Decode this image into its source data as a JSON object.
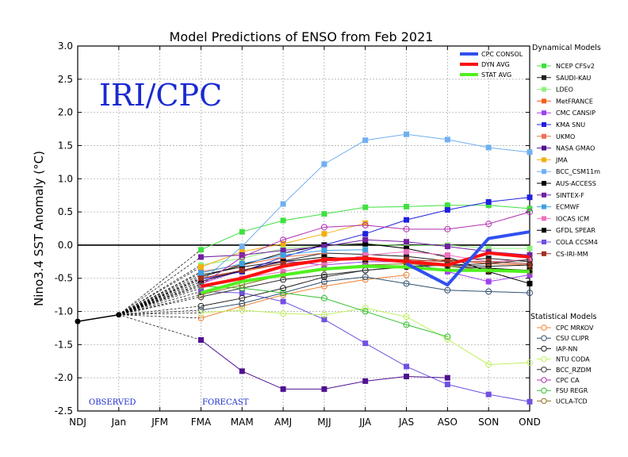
{
  "chart_data": {
    "type": "line",
    "title": "Model Predictions of ENSO from Feb 2021",
    "watermark": "IRI/CPC",
    "xlabel": "",
    "ylabel": "Nino3.4 SST Anomaly (°C)",
    "ylim": [
      -2.5,
      3.0
    ],
    "yticks": [
      "3.0",
      "2.5",
      "2.0",
      "1.5",
      "1.0",
      "0.5",
      "0.0",
      "-0.5",
      "-1.0",
      "-1.5",
      "-2.0",
      "-2.5"
    ],
    "categories": [
      "NDJ",
      "Jan",
      "JFM",
      "FMA",
      "MAM",
      "AMJ",
      "MJJ",
      "JJA",
      "JAS",
      "ASO",
      "SON",
      "OND"
    ],
    "observed_label": "OBSERVED",
    "forecast_label": "FORECAST",
    "grid": true,
    "observed": [
      -1.15,
      -1.05
    ],
    "consensus_legend": [
      {
        "name": "CPC CONSOL",
        "color": "#3050f0"
      },
      {
        "name": "DYN AVG",
        "color": "#ff1010"
      },
      {
        "name": "STAT AVG",
        "color": "#50f020"
      }
    ],
    "dynamical_title": "Dynamical Models",
    "statistical_title": "Statistical Models",
    "series": [
      {
        "name": "CPC CONSOL",
        "group": "consensus",
        "color": "#3050f0",
        "values": [
          null,
          null,
          null,
          null,
          null,
          null,
          null,
          null,
          -0.28,
          -0.6,
          0.1,
          0.2
        ]
      },
      {
        "name": "DYN AVG",
        "group": "consensus",
        "color": "#ff1010",
        "values": [
          null,
          null,
          null,
          -0.62,
          -0.5,
          -0.32,
          -0.22,
          -0.2,
          -0.25,
          -0.3,
          -0.12,
          -0.18
        ]
      },
      {
        "name": "STAT AVG",
        "group": "consensus",
        "color": "#50f020",
        "values": [
          null,
          null,
          null,
          -0.72,
          -0.55,
          -0.45,
          -0.36,
          -0.32,
          -0.33,
          -0.38,
          -0.38,
          -0.4
        ]
      },
      {
        "name": "NCEP CFSv2",
        "group": "dynamical",
        "marker": "square",
        "color": "#40e040",
        "values": [
          null,
          null,
          null,
          -0.07,
          0.2,
          0.37,
          0.47,
          0.57,
          0.58,
          0.6,
          0.6,
          0.55
        ]
      },
      {
        "name": "SAUDI-KAU",
        "group": "dynamical",
        "marker": "square",
        "color": "#202020",
        "values": [
          null,
          null,
          null,
          -0.45,
          -0.33,
          -0.24,
          -0.12,
          -0.14,
          -0.17,
          -0.24,
          -0.2,
          -0.25
        ]
      },
      {
        "name": "LDEO",
        "group": "dynamical",
        "marker": "square",
        "color": "#90f080",
        "values": [
          null,
          null,
          null,
          -0.3,
          -0.2,
          -0.05,
          -0.01,
          0.02,
          -0.01,
          0.0,
          -0.05,
          -0.05
        ]
      },
      {
        "name": "MetFRANCE",
        "group": "dynamical",
        "marker": "square",
        "color": "#f06020",
        "values": [
          null,
          null,
          null,
          -0.5,
          -0.4,
          -0.28,
          -0.22,
          -0.18,
          -0.25,
          -0.22,
          -0.28,
          -0.3
        ]
      },
      {
        "name": "CMC CANSIP",
        "group": "dynamical",
        "marker": "square",
        "color": "#a040f0",
        "values": [
          null,
          null,
          null,
          -0.58,
          -0.38,
          -0.24,
          -0.3,
          -0.25,
          -0.25,
          -0.4,
          -0.55,
          -0.45
        ]
      },
      {
        "name": "KMA SNU",
        "group": "dynamical",
        "marker": "square",
        "color": "#2020e0",
        "values": [
          null,
          null,
          null,
          -0.52,
          -0.4,
          -0.18,
          0.0,
          0.17,
          0.38,
          0.53,
          0.65,
          0.72
        ]
      },
      {
        "name": "UKMO",
        "group": "dynamical",
        "marker": "square",
        "color": "#f07050",
        "values": [
          null,
          null,
          null,
          -0.4,
          -0.3,
          -0.18,
          -0.12,
          null,
          null,
          null,
          null,
          null
        ]
      },
      {
        "name": "NASA GMAO",
        "group": "dynamical",
        "marker": "square",
        "color": "#501090",
        "values": [
          null,
          null,
          null,
          -1.43,
          -1.9,
          -2.17,
          -2.17,
          -2.05,
          -1.98,
          -2.0,
          null,
          null
        ]
      },
      {
        "name": "JMA",
        "group": "dynamical",
        "marker": "square",
        "color": "#f0b010",
        "values": [
          null,
          null,
          null,
          -0.33,
          -0.1,
          0.02,
          0.17,
          0.33,
          null,
          null,
          null,
          null
        ]
      },
      {
        "name": "BCC_CSM11m",
        "group": "dynamical",
        "marker": "square",
        "color": "#70b0f0",
        "values": [
          null,
          null,
          null,
          -0.55,
          -0.02,
          0.62,
          1.22,
          1.58,
          1.67,
          1.59,
          1.47,
          1.4
        ]
      },
      {
        "name": "AUS-ACCESS",
        "group": "dynamical",
        "marker": "square",
        "color": "#000000",
        "values": [
          null,
          null,
          null,
          -0.48,
          -0.3,
          -0.12,
          0.0,
          0.02,
          -0.05,
          -0.18,
          -0.4,
          -0.58
        ]
      },
      {
        "name": "SINTEX-F",
        "group": "dynamical",
        "marker": "square",
        "color": "#7020a0",
        "values": [
          null,
          null,
          null,
          -0.18,
          -0.15,
          -0.08,
          -0.02,
          0.08,
          0.05,
          -0.02,
          -0.1,
          -0.15
        ]
      },
      {
        "name": "ECMWF",
        "group": "dynamical",
        "marker": "square",
        "color": "#40a0e0",
        "values": [
          null,
          null,
          null,
          -0.42,
          -0.28,
          -0.15,
          -0.08,
          -0.07,
          null,
          null,
          null,
          null
        ]
      },
      {
        "name": "IOCAS ICM",
        "group": "dynamical",
        "marker": "square",
        "color": "#f070c0",
        "values": [
          null,
          null,
          null,
          -0.65,
          -0.5,
          -0.4,
          -0.28,
          -0.15,
          -0.1,
          -0.15,
          -0.25,
          -0.22
        ]
      },
      {
        "name": "GFDL SPEAR",
        "group": "dynamical",
        "marker": "square",
        "color": "#000000",
        "values": [
          null,
          null,
          null,
          -0.55,
          -0.38,
          -0.25,
          -0.18,
          -0.22,
          -0.25,
          -0.32,
          -0.35,
          -0.38
        ]
      },
      {
        "name": "COLA CCSM4",
        "group": "dynamical",
        "marker": "square",
        "color": "#7050e0",
        "values": [
          null,
          null,
          null,
          -0.7,
          -0.72,
          -0.85,
          -1.12,
          -1.48,
          -1.83,
          -2.1,
          -2.25,
          -2.36
        ]
      },
      {
        "name": "CS-IRI-MM",
        "group": "dynamical",
        "marker": "square",
        "color": "#a03020",
        "values": [
          null,
          null,
          null,
          -0.5,
          -0.38,
          -0.28,
          -0.22,
          -0.2,
          -0.22,
          -0.25,
          -0.25,
          -0.28
        ]
      },
      {
        "name": "CPC MRKOV",
        "group": "statistical",
        "marker": "circle",
        "color": "#f08030",
        "values": [
          null,
          null,
          null,
          -1.1,
          -0.92,
          -0.75,
          -0.62,
          -0.52,
          -0.45,
          null,
          null,
          null
        ]
      },
      {
        "name": "CSU CLIPR",
        "group": "statistical",
        "marker": "circle",
        "color": "#305070",
        "values": [
          null,
          null,
          null,
          -0.98,
          -0.88,
          -0.72,
          -0.55,
          -0.48,
          -0.58,
          -0.68,
          -0.7,
          -0.72
        ]
      },
      {
        "name": "IAP-NN",
        "group": "statistical",
        "marker": "circle",
        "color": "#202020",
        "values": [
          null,
          null,
          null,
          -0.92,
          -0.8,
          -0.65,
          -0.48,
          -0.38,
          -0.32,
          -0.3,
          -0.32,
          -0.3
        ]
      },
      {
        "name": "NTU CODA",
        "group": "statistical",
        "marker": "circle",
        "color": "#c0f060",
        "values": [
          null,
          null,
          null,
          -1.02,
          -0.98,
          -1.03,
          -1.05,
          -0.95,
          -1.08,
          -1.42,
          -1.8,
          -1.77
        ]
      },
      {
        "name": "BCC_RZDM",
        "group": "statistical",
        "marker": "circle",
        "color": "#303030",
        "values": [
          null,
          null,
          null,
          -0.78,
          -0.65,
          -0.52,
          -0.45,
          -0.38,
          -0.33,
          -0.3,
          -0.28,
          -0.22
        ]
      },
      {
        "name": "CPC CA",
        "group": "statistical",
        "marker": "circle",
        "color": "#b030b0",
        "values": [
          null,
          null,
          null,
          -0.6,
          -0.18,
          0.08,
          0.27,
          0.3,
          0.24,
          0.24,
          0.32,
          0.5
        ]
      },
      {
        "name": "FSU REGR",
        "group": "statistical",
        "marker": "circle",
        "color": "#30c030",
        "values": [
          null,
          null,
          null,
          -0.62,
          -0.65,
          -0.72,
          -0.8,
          -1.0,
          -1.2,
          -1.38,
          null,
          null
        ]
      },
      {
        "name": "UCLA-TCD",
        "group": "statistical",
        "marker": "circle",
        "color": "#907020",
        "values": [
          null,
          null,
          null,
          -0.75,
          -0.6,
          -0.45,
          -0.35,
          -0.3,
          -0.28,
          -0.32,
          -0.38,
          -0.4
        ]
      }
    ]
  }
}
